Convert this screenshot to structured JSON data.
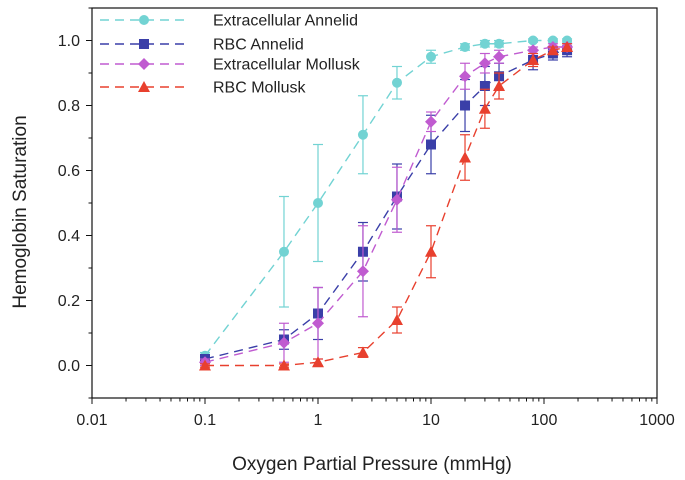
{
  "chart_data": {
    "type": "line",
    "xlabel": "Oxygen Partial Pressure (mmHg)",
    "ylabel": "Hemoglobin Saturation",
    "xscale": "log",
    "xlim": [
      0.01,
      1000
    ],
    "ylim": [
      -0.1,
      1.1
    ],
    "xticks": [
      "0.01",
      "0.1",
      "1",
      "10",
      "100",
      "1000"
    ],
    "xtick_values": [
      0.01,
      0.1,
      1,
      10,
      100,
      1000
    ],
    "yticks": [
      "0.0",
      "0.2",
      "0.4",
      "0.6",
      "0.8",
      "1.0"
    ],
    "ytick_values": [
      0,
      0.2,
      0.4,
      0.6,
      0.8,
      1.0
    ],
    "grid": false,
    "legend_position": "top-left",
    "series": [
      {
        "name": "Extracellular Annelid",
        "color": "#72d3d3",
        "marker": "circle",
        "x": [
          0.1,
          0.5,
          1,
          2.5,
          5,
          10,
          20,
          30,
          40,
          80,
          120,
          160
        ],
        "y": [
          0.03,
          0.35,
          0.5,
          0.71,
          0.87,
          0.95,
          0.98,
          0.99,
          0.99,
          1.0,
          1.0,
          1.0
        ],
        "err": [
          0.01,
          0.17,
          0.18,
          0.12,
          0.05,
          0.02,
          0.01,
          0.01,
          0.01,
          0.005,
          0.005,
          0.005
        ]
      },
      {
        "name": "RBC Annelid",
        "color": "#3a3fa8",
        "marker": "square",
        "x": [
          0.1,
          0.5,
          1,
          2.5,
          5,
          10,
          20,
          30,
          40,
          80,
          120,
          160
        ],
        "y": [
          0.02,
          0.08,
          0.16,
          0.35,
          0.52,
          0.68,
          0.8,
          0.86,
          0.89,
          0.94,
          0.96,
          0.97
        ],
        "err": [
          0.01,
          0.03,
          0.08,
          0.09,
          0.1,
          0.09,
          0.08,
          0.06,
          0.04,
          0.03,
          0.02,
          0.02
        ]
      },
      {
        "name": "Extracellular Mollusk",
        "color": "#c05bd0",
        "marker": "diamond",
        "x": [
          0.1,
          0.5,
          1,
          2.5,
          5,
          10,
          20,
          30,
          40,
          80,
          120,
          160
        ],
        "y": [
          0.01,
          0.07,
          0.13,
          0.29,
          0.51,
          0.75,
          0.89,
          0.93,
          0.95,
          0.97,
          0.98,
          0.98
        ],
        "err": [
          0.01,
          0.06,
          0.11,
          0.14,
          0.1,
          0.03,
          0.04,
          0.03,
          0.02,
          0.01,
          0.01,
          0.01
        ]
      },
      {
        "name": "RBC Mollusk",
        "color": "#e8402e",
        "marker": "triangle",
        "x": [
          0.1,
          0.5,
          1,
          2.5,
          5,
          10,
          20,
          30,
          40,
          80,
          120,
          160
        ],
        "y": [
          0.0,
          0.0,
          0.01,
          0.04,
          0.14,
          0.35,
          0.64,
          0.79,
          0.86,
          0.94,
          0.97,
          0.98
        ],
        "err": [
          0.005,
          0.005,
          0.01,
          0.015,
          0.04,
          0.08,
          0.07,
          0.06,
          0.04,
          0.02,
          0.01,
          0.01
        ]
      }
    ]
  }
}
